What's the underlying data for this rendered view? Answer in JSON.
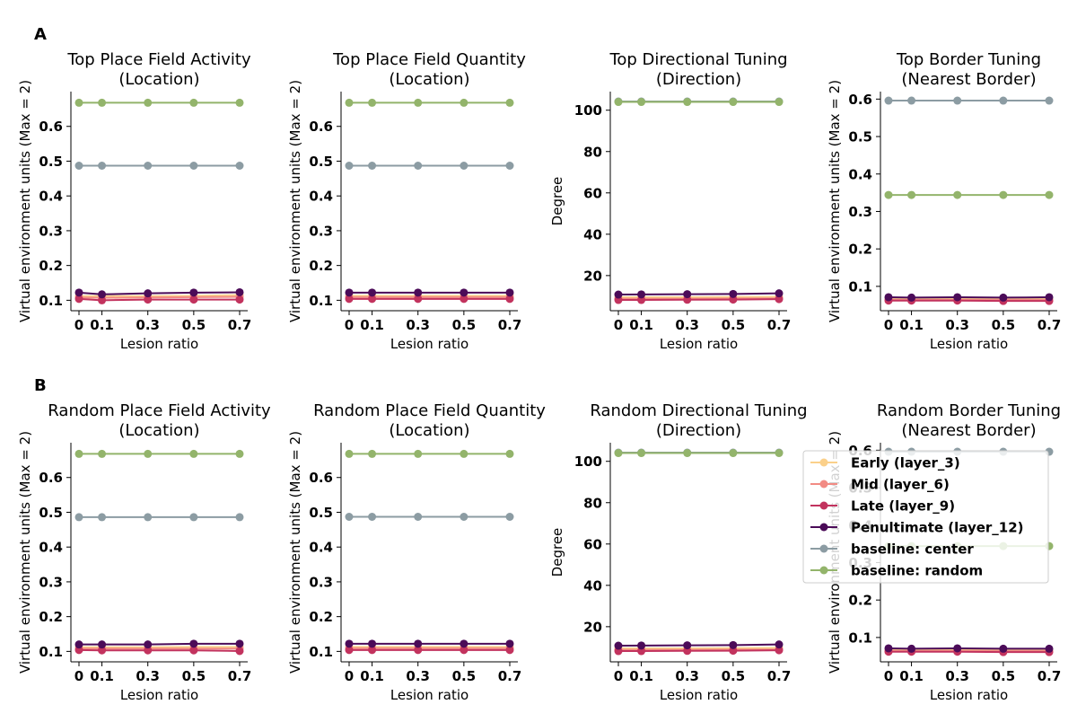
{
  "panel_labels": [
    "A",
    "B"
  ],
  "colors": {
    "Early (layer_3)": "#fbd08a",
    "Mid (layer_6)": "#f28b84",
    "Late (layer_9)": "#c2335e",
    "Penultimate (layer_12)": "#4b0b58",
    "baseline: center": "#8c9ca3",
    "baseline: random": "#93b46b"
  },
  "legend": {
    "placement": "right",
    "entries": [
      "Early (layer_3)",
      "Mid (layer_6)",
      "Late (layer_9)",
      "Penultimate (layer_12)",
      "baseline: center",
      "baseline: random"
    ]
  },
  "chart_data": [
    {
      "type": "line",
      "title": [
        "Top Place Field Activity",
        "(Location)"
      ],
      "xlabel": "Lesion ratio",
      "ylabel": "Virtual environment units (Max = 2)",
      "x": [
        0,
        0.1,
        0.3,
        0.5,
        0.7
      ],
      "x_tick_labels": [
        "0",
        "0.1",
        "0.3",
        "0.5",
        "0.7"
      ],
      "ylim": [
        0.07,
        0.7
      ],
      "yticks": [
        0.1,
        0.2,
        0.3,
        0.4,
        0.5,
        0.6
      ],
      "y_tick_labels": [
        "0.1",
        "0.2",
        "0.3",
        "0.4",
        "0.5",
        "0.6"
      ],
      "series": [
        {
          "name": "Early (layer_3)",
          "values": [
            0.112,
            0.112,
            0.112,
            0.113,
            0.115
          ]
        },
        {
          "name": "Mid (layer_6)",
          "values": [
            0.108,
            0.107,
            0.108,
            0.109,
            0.11
          ]
        },
        {
          "name": "Late (layer_9)",
          "values": [
            0.104,
            0.1,
            0.102,
            0.102,
            0.102
          ]
        },
        {
          "name": "Penultimate (layer_12)",
          "values": [
            0.122,
            0.117,
            0.12,
            0.122,
            0.123
          ]
        },
        {
          "name": "baseline: center",
          "values": [
            0.487,
            0.487,
            0.487,
            0.487,
            0.487
          ]
        },
        {
          "name": "baseline: random",
          "values": [
            0.668,
            0.668,
            0.668,
            0.668,
            0.668
          ]
        }
      ]
    },
    {
      "type": "line",
      "title": [
        "Top Place Field Quantity",
        "(Location)"
      ],
      "xlabel": "Lesion ratio",
      "ylabel": "Virtual environment units (Max = 2)",
      "x": [
        0,
        0.1,
        0.3,
        0.5,
        0.7
      ],
      "x_tick_labels": [
        "0",
        "0.1",
        "0.3",
        "0.5",
        "0.7"
      ],
      "ylim": [
        0.07,
        0.7
      ],
      "yticks": [
        0.1,
        0.2,
        0.3,
        0.4,
        0.5,
        0.6
      ],
      "y_tick_labels": [
        "0.1",
        "0.2",
        "0.3",
        "0.4",
        "0.5",
        "0.6"
      ],
      "series": [
        {
          "name": "Early (layer_3)",
          "values": [
            0.113,
            0.113,
            0.113,
            0.113,
            0.113
          ]
        },
        {
          "name": "Mid (layer_6)",
          "values": [
            0.109,
            0.109,
            0.109,
            0.109,
            0.109
          ]
        },
        {
          "name": "Late (layer_9)",
          "values": [
            0.104,
            0.104,
            0.104,
            0.104,
            0.104
          ]
        },
        {
          "name": "Penultimate (layer_12)",
          "values": [
            0.122,
            0.122,
            0.122,
            0.122,
            0.122
          ]
        },
        {
          "name": "baseline: center",
          "values": [
            0.487,
            0.487,
            0.487,
            0.487,
            0.487
          ]
        },
        {
          "name": "baseline: random",
          "values": [
            0.668,
            0.668,
            0.668,
            0.668,
            0.668
          ]
        }
      ]
    },
    {
      "type": "line",
      "title": [
        "Top Directional Tuning",
        "(Direction)"
      ],
      "xlabel": "Lesion ratio",
      "ylabel": "Degree",
      "x": [
        0,
        0.1,
        0.3,
        0.5,
        0.7
      ],
      "x_tick_labels": [
        "0",
        "0.1",
        "0.3",
        "0.5",
        "0.7"
      ],
      "ylim": [
        3,
        109
      ],
      "yticks": [
        20,
        40,
        60,
        80,
        100
      ],
      "y_tick_labels": [
        "20",
        "40",
        "60",
        "80",
        "100"
      ],
      "series": [
        {
          "name": "Early (layer_3)",
          "values": [
            9.5,
            9.5,
            9.5,
            9.6,
            9.8
          ]
        },
        {
          "name": "Mid (layer_6)",
          "values": [
            8.8,
            8.8,
            8.8,
            8.9,
            9.0
          ]
        },
        {
          "name": "Late (layer_9)",
          "values": [
            8.2,
            8.2,
            8.3,
            8.4,
            8.6
          ]
        },
        {
          "name": "Penultimate (layer_12)",
          "values": [
            10.8,
            10.9,
            11.0,
            11.1,
            11.4
          ]
        },
        {
          "name": "baseline: center",
          "values": [
            104.2,
            104.2,
            104.2,
            104.2,
            104.2
          ]
        },
        {
          "name": "baseline: random",
          "values": [
            104.0,
            104.0,
            104.0,
            104.0,
            104.0
          ]
        }
      ]
    },
    {
      "type": "line",
      "title": [
        "Top Border Tuning",
        "(Nearest Border)"
      ],
      "xlabel": "Lesion ratio",
      "ylabel": "Virtual environment units (Max = 2)",
      "x": [
        0,
        0.1,
        0.3,
        0.5,
        0.7
      ],
      "x_tick_labels": [
        "0",
        "0.1",
        "0.3",
        "0.5",
        "0.7"
      ],
      "ylim": [
        0.035,
        0.62
      ],
      "yticks": [
        0.1,
        0.2,
        0.3,
        0.4,
        0.5,
        0.6
      ],
      "y_tick_labels": [
        "0.1",
        "0.2",
        "0.3",
        "0.4",
        "0.5",
        "0.6"
      ],
      "series": [
        {
          "name": "Early (layer_3)",
          "values": [
            0.067,
            0.067,
            0.067,
            0.067,
            0.067
          ]
        },
        {
          "name": "Mid (layer_6)",
          "values": [
            0.064,
            0.064,
            0.064,
            0.064,
            0.064
          ]
        },
        {
          "name": "Late (layer_9)",
          "values": [
            0.062,
            0.062,
            0.062,
            0.061,
            0.061
          ]
        },
        {
          "name": "Penultimate (layer_12)",
          "values": [
            0.071,
            0.07,
            0.071,
            0.07,
            0.071
          ]
        },
        {
          "name": "baseline: center",
          "values": [
            0.596,
            0.596,
            0.596,
            0.596,
            0.596
          ]
        },
        {
          "name": "baseline: random",
          "values": [
            0.344,
            0.344,
            0.344,
            0.344,
            0.344
          ]
        }
      ]
    },
    {
      "type": "line",
      "title": [
        "Random Place Field Activity",
        "(Location)"
      ],
      "xlabel": "Lesion ratio",
      "ylabel": "Virtual environment units (Max = 2)",
      "x": [
        0,
        0.1,
        0.3,
        0.5,
        0.7
      ],
      "x_tick_labels": [
        "0",
        "0.1",
        "0.3",
        "0.5",
        "0.7"
      ],
      "ylim": [
        0.07,
        0.7
      ],
      "yticks": [
        0.1,
        0.2,
        0.3,
        0.4,
        0.5,
        0.6
      ],
      "y_tick_labels": [
        "0.1",
        "0.2",
        "0.3",
        "0.4",
        "0.5",
        "0.6"
      ],
      "series": [
        {
          "name": "Early (layer_3)",
          "values": [
            0.112,
            0.112,
            0.112,
            0.113,
            0.113
          ]
        },
        {
          "name": "Mid (layer_6)",
          "values": [
            0.108,
            0.108,
            0.108,
            0.108,
            0.108
          ]
        },
        {
          "name": "Late (layer_9)",
          "values": [
            0.104,
            0.103,
            0.103,
            0.103,
            0.101
          ]
        },
        {
          "name": "Penultimate (layer_12)",
          "values": [
            0.12,
            0.12,
            0.12,
            0.122,
            0.122
          ]
        },
        {
          "name": "baseline: center",
          "values": [
            0.486,
            0.486,
            0.486,
            0.486,
            0.486
          ]
        },
        {
          "name": "baseline: random",
          "values": [
            0.668,
            0.668,
            0.668,
            0.668,
            0.668
          ]
        }
      ]
    },
    {
      "type": "line",
      "title": [
        "Random Place Field Quantity",
        "(Location)"
      ],
      "xlabel": "Lesion ratio",
      "ylabel": "Virtual environment units (Max = 2)",
      "x": [
        0,
        0.1,
        0.3,
        0.5,
        0.7
      ],
      "x_tick_labels": [
        "0",
        "0.1",
        "0.3",
        "0.5",
        "0.7"
      ],
      "ylim": [
        0.07,
        0.7
      ],
      "yticks": [
        0.1,
        0.2,
        0.3,
        0.4,
        0.5,
        0.6
      ],
      "y_tick_labels": [
        "0.1",
        "0.2",
        "0.3",
        "0.4",
        "0.5",
        "0.6"
      ],
      "series": [
        {
          "name": "Early (layer_3)",
          "values": [
            0.113,
            0.113,
            0.113,
            0.113,
            0.113
          ]
        },
        {
          "name": "Mid (layer_6)",
          "values": [
            0.109,
            0.109,
            0.109,
            0.109,
            0.109
          ]
        },
        {
          "name": "Late (layer_9)",
          "values": [
            0.104,
            0.104,
            0.104,
            0.104,
            0.104
          ]
        },
        {
          "name": "Penultimate (layer_12)",
          "values": [
            0.122,
            0.122,
            0.122,
            0.122,
            0.122
          ]
        },
        {
          "name": "baseline: center",
          "values": [
            0.487,
            0.487,
            0.487,
            0.487,
            0.487
          ]
        },
        {
          "name": "baseline: random",
          "values": [
            0.668,
            0.668,
            0.668,
            0.668,
            0.668
          ]
        }
      ]
    },
    {
      "type": "line",
      "title": [
        "Random Directional Tuning",
        "(Direction)"
      ],
      "xlabel": "Lesion ratio",
      "ylabel": "Degree",
      "x": [
        0,
        0.1,
        0.3,
        0.5,
        0.7
      ],
      "x_tick_labels": [
        "0",
        "0.1",
        "0.3",
        "0.5",
        "0.7"
      ],
      "ylim": [
        3,
        109
      ],
      "yticks": [
        20,
        40,
        60,
        80,
        100
      ],
      "y_tick_labels": [
        "20",
        "40",
        "60",
        "80",
        "100"
      ],
      "series": [
        {
          "name": "Early (layer_3)",
          "values": [
            9.5,
            9.5,
            9.5,
            9.6,
            9.8
          ]
        },
        {
          "name": "Mid (layer_6)",
          "values": [
            8.8,
            8.8,
            8.8,
            8.9,
            9.0
          ]
        },
        {
          "name": "Late (layer_9)",
          "values": [
            8.2,
            8.2,
            8.3,
            8.4,
            8.6
          ]
        },
        {
          "name": "Penultimate (layer_12)",
          "values": [
            10.8,
            10.9,
            11.0,
            11.1,
            11.4
          ]
        },
        {
          "name": "baseline: center",
          "values": [
            104.2,
            104.2,
            104.2,
            104.2,
            104.2
          ]
        },
        {
          "name": "baseline: random",
          "values": [
            104.0,
            104.0,
            104.0,
            104.0,
            104.0
          ]
        }
      ]
    },
    {
      "type": "line",
      "title": [
        "Random Border Tuning",
        "(Nearest Border)"
      ],
      "xlabel": "Lesion ratio",
      "ylabel": "Virtual environment units (Max = 2)",
      "x": [
        0,
        0.1,
        0.3,
        0.5,
        0.7
      ],
      "x_tick_labels": [
        "0",
        "0.1",
        "0.3",
        "0.5",
        "0.7"
      ],
      "ylim": [
        0.035,
        0.62
      ],
      "yticks": [
        0.1,
        0.2,
        0.3,
        0.4,
        0.5,
        0.6
      ],
      "y_tick_labels": [
        "0.1",
        "0.2",
        "0.3",
        "0.4",
        "0.5",
        "0.6"
      ],
      "series": [
        {
          "name": "Early (layer_3)",
          "values": [
            0.067,
            0.067,
            0.067,
            0.067,
            0.067
          ]
        },
        {
          "name": "Mid (layer_6)",
          "values": [
            0.064,
            0.064,
            0.064,
            0.064,
            0.064
          ]
        },
        {
          "name": "Late (layer_9)",
          "values": [
            0.062,
            0.062,
            0.062,
            0.061,
            0.061
          ]
        },
        {
          "name": "Penultimate (layer_12)",
          "values": [
            0.071,
            0.07,
            0.071,
            0.07,
            0.07
          ]
        },
        {
          "name": "baseline: center",
          "values": [
            0.596,
            0.596,
            0.596,
            0.596,
            0.596
          ]
        },
        {
          "name": "baseline: random",
          "values": [
            0.344,
            0.344,
            0.344,
            0.344,
            0.344
          ]
        }
      ]
    }
  ]
}
